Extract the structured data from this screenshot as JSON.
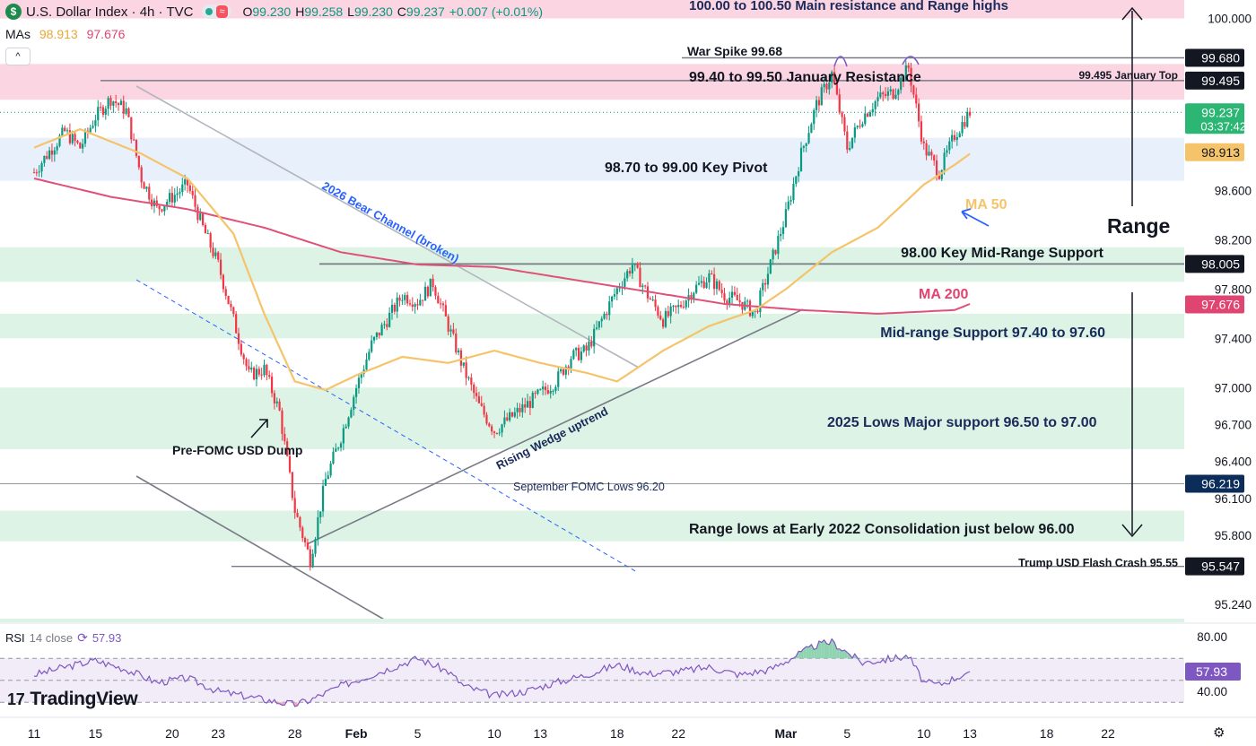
{
  "header": {
    "symbol_icon": "dollar-icon",
    "title": "U.S. Dollar Index · 4h · TVC",
    "ohlc": {
      "o_label": "O",
      "o": "99.230",
      "h_label": "H",
      "h": "99.258",
      "l_label": "L",
      "l": "99.230",
      "c_label": "C",
      "c": "99.237",
      "change": "+0.007 (+0.01%)"
    }
  },
  "mas": {
    "label": "MAs",
    "ma50": "98.913",
    "ma200": "97.676"
  },
  "rsi": {
    "label": "RSI",
    "params": "14 close",
    "value": "57.93"
  },
  "brand": "TradingView",
  "colors": {
    "up": "#089981",
    "down": "#f23645",
    "ma50": "#f5c46a",
    "ma200": "#e0517a",
    "rsi": "#7e57c2",
    "resistance": "#fbd5e1",
    "support": "#dcf3e6",
    "pivot": "#e8f1fb"
  },
  "chart_data": {
    "type": "candlestick",
    "timeframe": "4h",
    "price_range": [
      95.1,
      100.15
    ],
    "price_ticks": [
      "100.000",
      "98.600",
      "98.200",
      "97.800",
      "97.400",
      "97.000",
      "96.700",
      "96.400",
      "96.100",
      "95.800",
      "95.240"
    ],
    "x_ticks": [
      {
        "label": "11",
        "day": 0
      },
      {
        "label": "15",
        "day": 4
      },
      {
        "label": "20",
        "day": 9
      },
      {
        "label": "23",
        "day": 12
      },
      {
        "label": "28",
        "day": 17
      },
      {
        "label": "Feb",
        "day": 21
      },
      {
        "label": "5",
        "day": 25
      },
      {
        "label": "10",
        "day": 30
      },
      {
        "label": "13",
        "day": 33
      },
      {
        "label": "18",
        "day": 38
      },
      {
        "label": "22",
        "day": 42
      },
      {
        "label": "Mar",
        "day": 49
      },
      {
        "label": "5",
        "day": 53
      },
      {
        "label": "10",
        "day": 58
      },
      {
        "label": "13",
        "day": 61
      },
      {
        "label": "18",
        "day": 66
      },
      {
        "label": "22",
        "day": 70
      }
    ],
    "price_path": [
      [
        0,
        98.75
      ],
      [
        1,
        98.92
      ],
      [
        2,
        99.08
      ],
      [
        3,
        98.95
      ],
      [
        4,
        99.2
      ],
      [
        5,
        99.35
      ],
      [
        6,
        99.25
      ],
      [
        7,
        98.7
      ],
      [
        8,
        98.45
      ],
      [
        9,
        98.55
      ],
      [
        10,
        98.65
      ],
      [
        11,
        98.3
      ],
      [
        12,
        98.0
      ],
      [
        13,
        97.55
      ],
      [
        14,
        97.1
      ],
      [
        15,
        97.15
      ],
      [
        16,
        96.8
      ],
      [
        17,
        96.0
      ],
      [
        18,
        95.6
      ],
      [
        19,
        96.25
      ],
      [
        20,
        96.6
      ],
      [
        21,
        97.0
      ],
      [
        22,
        97.35
      ],
      [
        23,
        97.55
      ],
      [
        24,
        97.75
      ],
      [
        25,
        97.7
      ],
      [
        26,
        97.85
      ],
      [
        27,
        97.5
      ],
      [
        28,
        97.15
      ],
      [
        29,
        96.85
      ],
      [
        30,
        96.65
      ],
      [
        31,
        96.75
      ],
      [
        32,
        96.85
      ],
      [
        33,
        96.95
      ],
      [
        34,
        97.05
      ],
      [
        35,
        97.25
      ],
      [
        36,
        97.3
      ],
      [
        37,
        97.55
      ],
      [
        38,
        97.8
      ],
      [
        39,
        98.0
      ],
      [
        40,
        97.75
      ],
      [
        41,
        97.55
      ],
      [
        42,
        97.65
      ],
      [
        43,
        97.8
      ],
      [
        44,
        97.9
      ],
      [
        45,
        97.75
      ],
      [
        46,
        97.7
      ],
      [
        47,
        97.6
      ],
      [
        48,
        98.0
      ],
      [
        49,
        98.4
      ],
      [
        50,
        98.9
      ],
      [
        51,
        99.3
      ],
      [
        52,
        99.55
      ],
      [
        53,
        98.95
      ],
      [
        54,
        99.2
      ],
      [
        55,
        99.35
      ],
      [
        56,
        99.4
      ],
      [
        57,
        99.6
      ],
      [
        58,
        98.95
      ],
      [
        59,
        98.75
      ],
      [
        60,
        99.05
      ],
      [
        61,
        99.24
      ]
    ],
    "ma50_path": [
      [
        0,
        98.95
      ],
      [
        3,
        99.1
      ],
      [
        7,
        98.9
      ],
      [
        10,
        98.7
      ],
      [
        13,
        98.25
      ],
      [
        15,
        97.6
      ],
      [
        17,
        97.05
      ],
      [
        19,
        96.98
      ],
      [
        21,
        97.1
      ],
      [
        24,
        97.25
      ],
      [
        27,
        97.2
      ],
      [
        30,
        97.3
      ],
      [
        33,
        97.2
      ],
      [
        36,
        97.12
      ],
      [
        38,
        97.05
      ],
      [
        41,
        97.3
      ],
      [
        44,
        97.5
      ],
      [
        47,
        97.63
      ],
      [
        49,
        97.8
      ],
      [
        52,
        98.1
      ],
      [
        55,
        98.3
      ],
      [
        58,
        98.65
      ],
      [
        60,
        98.81
      ],
      [
        61,
        98.9
      ]
    ],
    "ma200_path": [
      [
        0,
        98.7
      ],
      [
        5,
        98.55
      ],
      [
        10,
        98.45
      ],
      [
        15,
        98.3
      ],
      [
        20,
        98.1
      ],
      [
        25,
        98.0
      ],
      [
        30,
        97.98
      ],
      [
        35,
        97.88
      ],
      [
        40,
        97.78
      ],
      [
        45,
        97.68
      ],
      [
        50,
        97.63
      ],
      [
        55,
        97.6
      ],
      [
        60,
        97.63
      ],
      [
        61,
        97.68
      ]
    ],
    "rsi_path": [
      [
        0,
        55
      ],
      [
        2,
        62
      ],
      [
        4,
        68
      ],
      [
        6,
        60
      ],
      [
        8,
        48
      ],
      [
        10,
        52
      ],
      [
        12,
        40
      ],
      [
        14,
        35
      ],
      [
        16,
        30
      ],
      [
        17,
        28
      ],
      [
        18,
        32
      ],
      [
        20,
        45
      ],
      [
        22,
        55
      ],
      [
        24,
        65
      ],
      [
        25,
        70
      ],
      [
        27,
        58
      ],
      [
        28,
        45
      ],
      [
        30,
        36
      ],
      [
        32,
        40
      ],
      [
        34,
        48
      ],
      [
        36,
        55
      ],
      [
        38,
        64
      ],
      [
        40,
        56
      ],
      [
        42,
        58
      ],
      [
        44,
        62
      ],
      [
        46,
        55
      ],
      [
        48,
        60
      ],
      [
        50,
        75
      ],
      [
        51,
        82
      ],
      [
        52,
        85
      ],
      [
        54,
        66
      ],
      [
        56,
        70
      ],
      [
        57,
        72
      ],
      [
        58,
        48
      ],
      [
        59,
        46
      ],
      [
        60,
        52
      ],
      [
        61,
        57.93
      ]
    ],
    "rsi_levels": {
      "upper": 70,
      "lower": 30,
      "mid": 50,
      "ticks": [
        "80.00",
        "40.00"
      ]
    },
    "price_tags": [
      {
        "price": 99.68,
        "label": "99.680",
        "kind": "dark"
      },
      {
        "price": 99.495,
        "label": "99.495",
        "kind": "dark"
      },
      {
        "price": 99.237,
        "label": "99.237",
        "sub": "03:37:42",
        "kind": "green"
      },
      {
        "price": 98.913,
        "label": "98.913",
        "kind": "orange"
      },
      {
        "price": 98.005,
        "label": "98.005",
        "kind": "dark"
      },
      {
        "price": 97.676,
        "label": "97.676",
        "kind": "pink"
      },
      {
        "price": 96.219,
        "label": "96.219",
        "kind": "navy"
      },
      {
        "price": 95.547,
        "label": "95.547",
        "kind": "dark"
      }
    ],
    "zones": [
      {
        "name": "resistance-main",
        "from": 100.0,
        "to": 100.5,
        "label": "100.00 to 100.50 Main resistance and Range highs"
      },
      {
        "name": "january-resistance",
        "from": 99.4,
        "to": 99.5,
        "label": "99.40 to 99.50 January Resistance"
      },
      {
        "name": "key-pivot",
        "from": 98.7,
        "to": 99.0,
        "label": "98.70 to 99.00 Key Pivot"
      },
      {
        "name": "mid-range-support",
        "from": 97.9,
        "to": 98.1,
        "label": "98.00 Key Mid-Range Support"
      },
      {
        "name": "mid-range-97",
        "from": 97.4,
        "to": 97.6,
        "label": "Mid-range Support 97.40 to 97.60"
      },
      {
        "name": "lows-2025",
        "from": 96.5,
        "to": 97.0,
        "label": "2025 Lows Major support 96.50 to 97.00"
      },
      {
        "name": "range-lows",
        "from": 95.75,
        "to": 96.0,
        "label": "Range lows at Early 2022 Consolidation just below 96.00"
      }
    ],
    "annotations": {
      "war_spike": "War Spike 99.68",
      "january_top": "99.495 January Top",
      "bear_channel": "2026 Bear Channel (broken)",
      "rising_wedge": "Rising Wedge uptrend",
      "september_fomc": "September FOMC Lows 96.20",
      "pre_fomc": "Pre-FOMC USD Dump",
      "flash_crash": "Trump USD Flash Crash 95.55",
      "ma50": "MA 50",
      "ma200": "MA 200",
      "range": "Range"
    }
  }
}
